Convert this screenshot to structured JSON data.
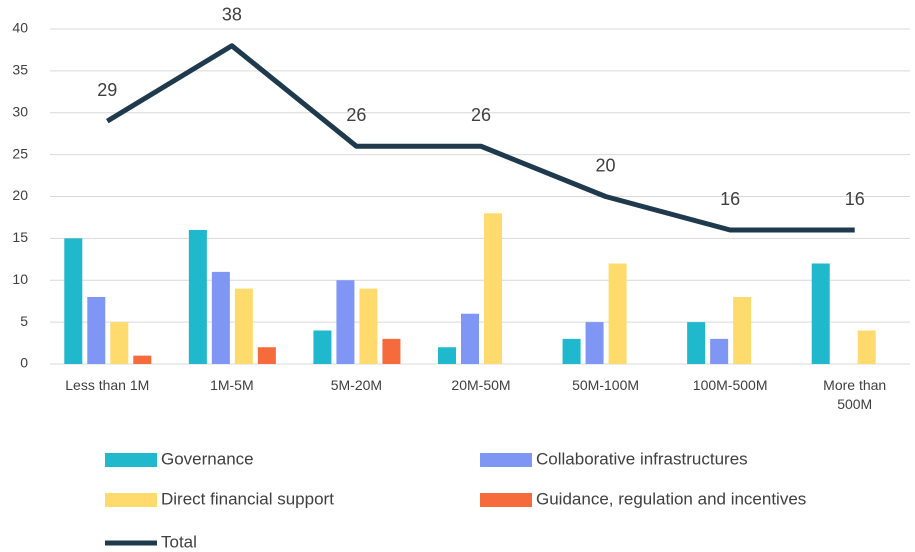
{
  "chart_data": {
    "type": "bar",
    "categories": [
      "Less than 1M",
      "1M-5M",
      "5M-20M",
      "20M-50M",
      "50M-100M",
      "100M-500M",
      "More than 500M"
    ],
    "series": [
      {
        "name": "Governance",
        "color": "#1fb8cc",
        "values": [
          15,
          16,
          4,
          2,
          3,
          5,
          12
        ]
      },
      {
        "name": "Collaborative infrastructures",
        "color": "#7f96f5",
        "values": [
          8,
          11,
          10,
          6,
          5,
          3,
          0
        ]
      },
      {
        "name": "Direct financial support",
        "color": "#ffdb6e",
        "values": [
          5,
          9,
          9,
          18,
          12,
          8,
          4
        ]
      },
      {
        "name": "Guidance, regulation and incentives",
        "color": "#f56b3b",
        "values": [
          1,
          2,
          3,
          0,
          0,
          0,
          0
        ]
      },
      {
        "name": "Total",
        "color": "#1f3a4d",
        "type": "line",
        "values": [
          29,
          38,
          26,
          26,
          20,
          16,
          16
        ]
      }
    ],
    "ylim": [
      0,
      40
    ],
    "yticks": [
      0,
      5,
      10,
      15,
      20,
      25,
      30,
      35,
      40
    ],
    "grid": true,
    "legend": "bottom"
  }
}
